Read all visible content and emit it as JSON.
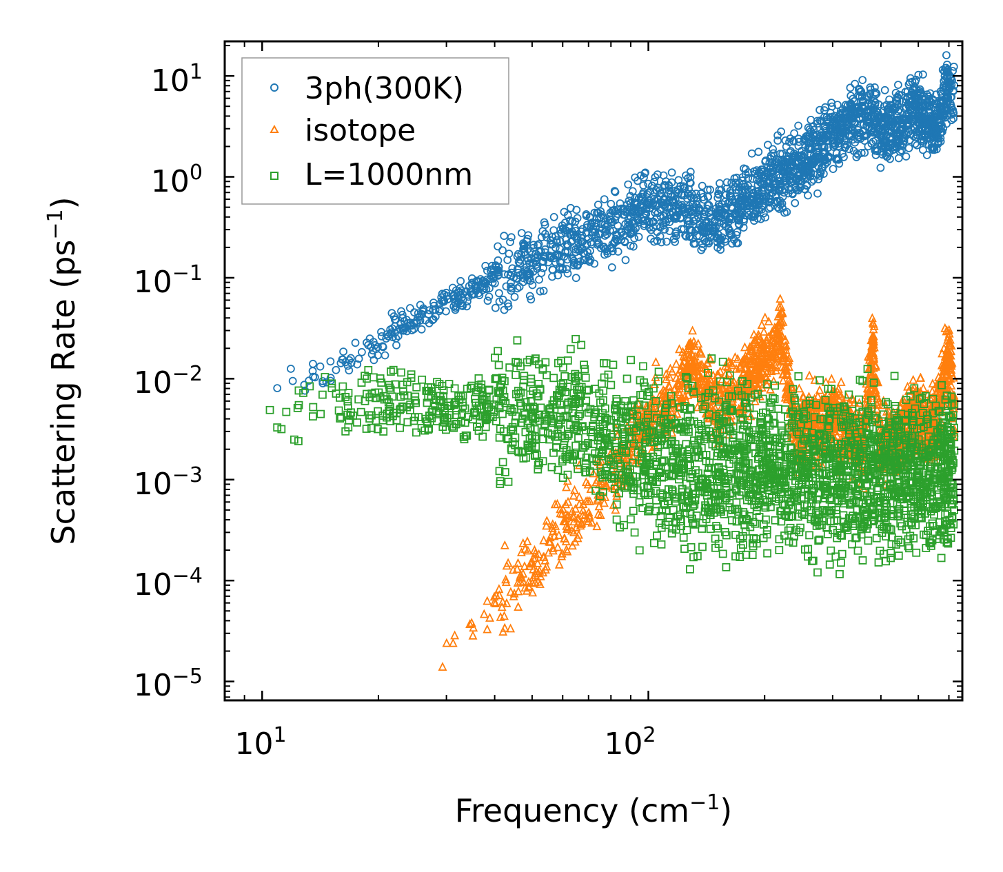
{
  "chart_data": {
    "type": "scatter",
    "xlabel": "Frequency (cm",
    "xlabel_sup": "−1",
    "xlabel_end": ")",
    "ylabel": "Scattering Rate (ps",
    "ylabel_sup": "−1",
    "ylabel_end": ")",
    "xscale": "log",
    "yscale": "log",
    "xlim": [
      8,
      650
    ],
    "ylim": [
      6.5e-06,
      22
    ],
    "x_ticks": [
      {
        "value": 10,
        "base": "10",
        "exp": "1"
      },
      {
        "value": 100,
        "base": "10",
        "exp": "2"
      }
    ],
    "y_ticks": [
      {
        "value": 10,
        "base": "10",
        "exp": "1"
      },
      {
        "value": 1,
        "base": "10",
        "exp": "0"
      },
      {
        "value": 0.1,
        "base": "10",
        "exp": "−1"
      },
      {
        "value": 0.01,
        "base": "10",
        "exp": "−2"
      },
      {
        "value": 0.001,
        "base": "10",
        "exp": "−3"
      },
      {
        "value": 0.0001,
        "base": "10",
        "exp": "−4"
      },
      {
        "value": 1e-05,
        "base": "10",
        "exp": "−5"
      }
    ],
    "legend": {
      "position": "top-left"
    },
    "series": [
      {
        "name": "3ph(300K)",
        "marker": "circle",
        "color": "#1f77b4",
        "anchors": [
          [
            10,
            0.007
          ],
          [
            11,
            0.0095
          ],
          [
            14,
            0.011
          ],
          [
            16,
            0.013
          ],
          [
            18,
            0.02
          ],
          [
            20,
            0.022
          ],
          [
            22,
            0.03
          ],
          [
            25,
            0.04
          ],
          [
            28,
            0.045
          ],
          [
            30,
            0.06
          ],
          [
            35,
            0.07
          ],
          [
            40,
            0.1
          ],
          [
            50,
            0.15
          ],
          [
            60,
            0.2
          ],
          [
            80,
            0.3
          ],
          [
            100,
            0.5
          ],
          [
            120,
            0.5
          ],
          [
            140,
            0.35
          ],
          [
            160,
            0.4
          ],
          [
            180,
            0.6
          ],
          [
            200,
            0.8
          ],
          [
            230,
            1.2
          ],
          [
            260,
            1.5
          ],
          [
            300,
            2.5
          ],
          [
            330,
            3.5
          ],
          [
            380,
            4.0
          ],
          [
            400,
            3.0
          ],
          [
            450,
            3.5
          ],
          [
            480,
            5.0
          ],
          [
            520,
            4.0
          ],
          [
            560,
            3.0
          ],
          [
            600,
            8.0
          ],
          [
            620,
            6.0
          ]
        ],
        "spread": 0.28
      },
      {
        "name": "isotope",
        "marker": "triangle",
        "color": "#ff7f0e",
        "anchors": [
          [
            28,
            1.2e-05
          ],
          [
            30,
            1.8e-05
          ],
          [
            35,
            3e-05
          ],
          [
            40,
            6e-05
          ],
          [
            45,
            0.0001
          ],
          [
            50,
            0.00015
          ],
          [
            60,
            0.0003
          ],
          [
            70,
            0.0006
          ],
          [
            80,
            0.001
          ],
          [
            90,
            0.002
          ],
          [
            100,
            0.004
          ],
          [
            115,
            0.006
          ],
          [
            130,
            0.015
          ],
          [
            150,
            0.005
          ],
          [
            180,
            0.01
          ],
          [
            200,
            0.015
          ],
          [
            220,
            0.03
          ],
          [
            240,
            0.003
          ],
          [
            300,
            0.004
          ],
          [
            330,
            0.003
          ],
          [
            360,
            0.002
          ],
          [
            380,
            0.025
          ],
          [
            400,
            0.002
          ],
          [
            450,
            0.003
          ],
          [
            500,
            0.004
          ],
          [
            550,
            0.003
          ],
          [
            600,
            0.02
          ],
          [
            620,
            0.004
          ]
        ],
        "spread": 0.3
      },
      {
        "name": "L=1000nm",
        "marker": "square",
        "color": "#2ca02c",
        "anchors": [
          [
            10,
            0.0043
          ],
          [
            11,
            0.0044
          ],
          [
            14,
            0.0058
          ],
          [
            16,
            0.0065
          ],
          [
            18,
            0.006
          ],
          [
            20,
            0.0055
          ],
          [
            25,
            0.006
          ],
          [
            30,
            0.005
          ],
          [
            40,
            0.005
          ],
          [
            50,
            0.004
          ],
          [
            60,
            0.004
          ],
          [
            70,
            0.0035
          ],
          [
            80,
            0.0025
          ],
          [
            100,
            0.0015
          ],
          [
            150,
            0.0015
          ],
          [
            200,
            0.0012
          ],
          [
            300,
            0.0012
          ],
          [
            400,
            0.0012
          ],
          [
            500,
            0.0012
          ],
          [
            620,
            0.0012
          ]
        ],
        "spread": 0.55
      }
    ]
  }
}
